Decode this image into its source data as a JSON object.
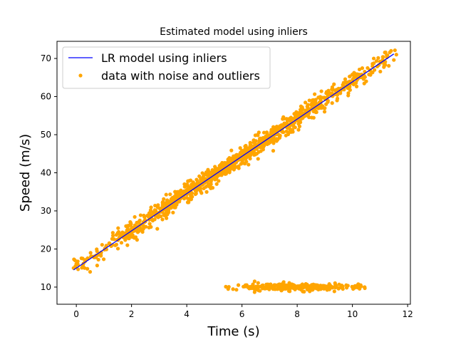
{
  "chart_data": {
    "type": "scatter",
    "title": "Estimated model using inliers",
    "xlabel": "Time (s)",
    "ylabel": "Speed (m/s)",
    "xlim": [
      -0.7,
      12.1
    ],
    "ylim": [
      5.5,
      74.5
    ],
    "xticks": [
      0,
      2,
      4,
      6,
      8,
      10,
      12
    ],
    "yticks": [
      10,
      20,
      30,
      40,
      50,
      60,
      70
    ],
    "grid": false,
    "legend_position": "top-left",
    "series": [
      {
        "name": "LR model using inliers",
        "kind": "line",
        "color": "#0000ff",
        "x": [
          -0.1,
          11.5
        ],
        "y": [
          14.5,
          71.2
        ]
      },
      {
        "name": "data with noise and outliers",
        "kind": "scatter",
        "color": "#ffa500",
        "clusters": [
          {
            "x_range": [
              -0.1,
              11.6
            ],
            "slope": 4.9,
            "intercept": 15.0,
            "noise": 1.2,
            "count": 1100,
            "x_weighting": "centered",
            "x_center": 5.8
          },
          {
            "x_range": [
              5.4,
              10.5
            ],
            "y_mean": 10.0,
            "noise": 0.45,
            "count": 260,
            "x_weighting": "centered",
            "x_center": 8.0
          }
        ],
        "points": [
          [
            -0.1,
            15.0
          ],
          [
            0.3,
            15.0
          ],
          [
            0.4,
            14.8
          ],
          [
            0.5,
            14.0
          ],
          [
            0.8,
            17.2
          ],
          [
            0.85,
            18.8
          ],
          [
            0.9,
            19.1
          ],
          [
            1.45,
            23.7
          ],
          [
            1.5,
            24.2
          ],
          [
            1.6,
            24.0
          ],
          [
            1.7,
            23.2
          ],
          [
            1.8,
            26.0
          ],
          [
            1.85,
            21.0
          ],
          [
            2.0,
            25.4
          ],
          [
            2.1,
            25.0
          ],
          [
            2.15,
            23.1
          ],
          [
            2.2,
            22.4
          ],
          [
            2.3,
            27.5
          ],
          [
            11.0,
            69.2
          ],
          [
            11.1,
            70.4
          ],
          [
            11.2,
            71.6
          ],
          [
            11.4,
            72.0
          ],
          [
            11.5,
            69.6
          ],
          [
            10.2,
            64.7
          ],
          [
            10.5,
            64.0
          ],
          [
            10.6,
            65.8
          ],
          [
            10.7,
            66.3
          ],
          [
            10.8,
            67.0
          ],
          [
            10.9,
            67.9
          ],
          [
            10.55,
            67.5
          ],
          [
            5.5,
            9.5
          ],
          [
            5.8,
            9.3
          ],
          [
            10.45,
            9.7
          ],
          [
            10.3,
            10.5
          ]
        ]
      }
    ]
  }
}
